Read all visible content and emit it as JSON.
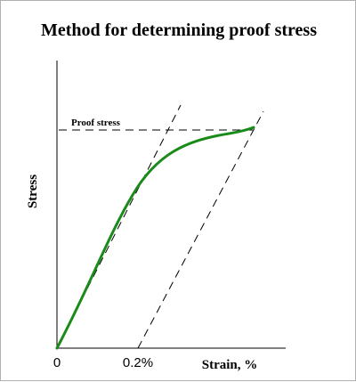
{
  "title": "Method for determining proof stress",
  "annotation": "Proof stress",
  "axes": {
    "xlabel": "Strain, %",
    "ylabel": "Stress",
    "x_tick_labels": [
      "0",
      "0.2%"
    ]
  },
  "colors": {
    "curve": "#1a8a1a",
    "axis": "#000000",
    "dashed": "#000000"
  },
  "chart_data": {
    "type": "line",
    "title": "Method for determining proof stress",
    "xlabel": "Strain, %",
    "ylabel": "Stress",
    "x_ticks": [
      {
        "value": 0,
        "label": "0"
      },
      {
        "value": 0.2,
        "label": "0.2%"
      }
    ],
    "series": [
      {
        "x": [
          0.0,
          0.02,
          0.05,
          0.08,
          0.1,
          0.12,
          0.14,
          0.18,
          0.22,
          0.26,
          0.3,
          0.34,
          0.38,
          0.41
        ],
        "y": [
          0.0,
          0.12,
          0.3,
          0.48,
          0.59,
          0.68,
          0.74,
          0.81,
          0.85,
          0.875,
          0.89,
          0.905,
          0.915,
          0.94
        ]
      }
    ],
    "reference_lines": [
      {
        "kind": "elastic-slope-through-origin"
      },
      {
        "kind": "offset-line",
        "offset": 0.2
      },
      {
        "kind": "horizontal-at-proof-stress",
        "y": 0.94
      }
    ]
  }
}
